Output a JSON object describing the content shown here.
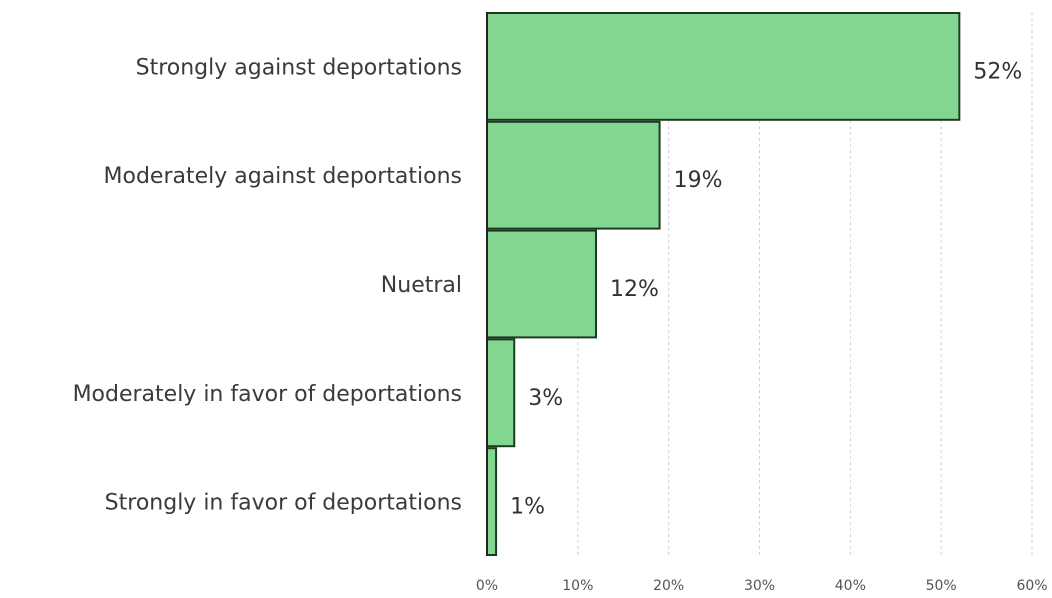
{
  "chart_data": {
    "type": "bar",
    "orientation": "horizontal",
    "title": "",
    "xlabel": "",
    "ylabel": "",
    "categories": [
      "Strongly against deportations",
      "Moderately against deportations",
      "Nuetral",
      "Moderately in favor of deportations",
      "Strongly in favor of deportations"
    ],
    "values": [
      52,
      19,
      12,
      3,
      1
    ],
    "data_labels": [
      "52%",
      "19%",
      "12%",
      "3%",
      "1%"
    ],
    "xlim": [
      0,
      60
    ],
    "x_ticks": [
      0,
      10,
      20,
      30,
      40,
      50,
      60
    ],
    "x_tick_labels": [
      "0%",
      "10%",
      "20%",
      "30%",
      "40%",
      "50%",
      "60%"
    ],
    "grid": "vertical dashed",
    "legend": "none",
    "bar_color": "#82d68f",
    "bar_edge_color": "#1f3a22"
  }
}
